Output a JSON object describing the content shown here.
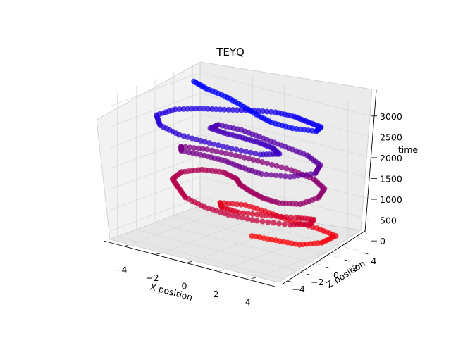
{
  "chart_data": {
    "type": "scatter",
    "projection": "3d",
    "title": "TEYQ",
    "xlabel": "X position",
    "ylabel": "Z position",
    "zlabel": "time",
    "xlim": [
      -5.3,
      5.3
    ],
    "ylim": [
      -4.8,
      4.8
    ],
    "zlim": [
      -200,
      3250
    ],
    "x_ticks": [
      -4,
      -2,
      0,
      2,
      4
    ],
    "y_ticks": [
      -4,
      -2,
      0,
      2,
      4
    ],
    "z_ticks": [
      0,
      500,
      1000,
      1500,
      2000,
      2500,
      3000
    ],
    "x_tick_labels": [
      "−4",
      "−2",
      "0",
      "2",
      "4"
    ],
    "y_tick_labels": [
      "−4",
      "−2",
      "0",
      "2",
      "4"
    ],
    "z_tick_labels": [
      "0",
      "500",
      "1000",
      "1500",
      "2000",
      "2500",
      "3000"
    ],
    "grid": true,
    "color_encoding": "time, red (0) to blue (3000)",
    "colors": {
      "start": "#ff0000",
      "end": "#0000ff",
      "pane": "#f2f2f2",
      "grid": "#d9d9d9"
    },
    "series": [
      {
        "points": [
          [
            0.5,
            0.5,
            0
          ],
          [
            2.0,
            0.5,
            40
          ],
          [
            3.5,
            0.5,
            80
          ],
          [
            4.3,
            1.5,
            120
          ],
          [
            4.3,
            3.0,
            160
          ],
          [
            3.0,
            3.2,
            200
          ],
          [
            1.5,
            3.0,
            240
          ],
          [
            0.0,
            3.2,
            280
          ],
          [
            -1.5,
            3.2,
            320
          ],
          [
            -2.5,
            2.2,
            360
          ],
          [
            -1.8,
            1.2,
            400
          ],
          [
            -0.5,
            0.8,
            440
          ],
          [
            1.0,
            1.2,
            480
          ],
          [
            2.5,
            1.8,
            520
          ],
          [
            3.5,
            2.0,
            560
          ],
          [
            4.0,
            0.8,
            600
          ],
          [
            3.5,
            -0.5,
            640
          ],
          [
            2.0,
            -1.5,
            680
          ],
          [
            0.5,
            -2.0,
            720
          ],
          [
            -1.0,
            -2.0,
            760
          ],
          [
            -2.5,
            -1.5,
            800
          ],
          [
            -3.5,
            -0.5,
            840
          ],
          [
            -4.5,
            0.5,
            880
          ],
          [
            -4.7,
            1.8,
            920
          ],
          [
            -4.0,
            2.8,
            960
          ],
          [
            -2.8,
            3.0,
            1000
          ],
          [
            -1.5,
            2.2,
            1040
          ],
          [
            -0.5,
            1.0,
            1080
          ],
          [
            0.8,
            0.0,
            1120
          ],
          [
            2.0,
            -0.8,
            1160
          ],
          [
            3.2,
            -1.2,
            1200
          ],
          [
            4.3,
            -0.8,
            1240
          ],
          [
            4.5,
            0.8,
            1280
          ],
          [
            4.0,
            2.3,
            1320
          ],
          [
            2.8,
            3.2,
            1360
          ],
          [
            1.2,
            3.5,
            1400
          ],
          [
            -0.5,
            3.3,
            1440
          ],
          [
            -2.0,
            3.0,
            1480
          ],
          [
            -3.5,
            2.5,
            1520
          ],
          [
            -4.6,
            1.6,
            1560
          ],
          [
            -4.0,
            0.6,
            1600
          ],
          [
            -2.5,
            0.5,
            1640
          ],
          [
            -1.0,
            0.2,
            1680
          ],
          [
            0.5,
            -0.5,
            1720
          ],
          [
            2.0,
            -1.0,
            1760
          ],
          [
            3.5,
            -0.5,
            1800
          ],
          [
            4.3,
            0.8,
            1840
          ],
          [
            3.8,
            2.2,
            1880
          ],
          [
            2.5,
            3.0,
            1920
          ],
          [
            1.0,
            3.2,
            1960
          ],
          [
            -0.5,
            3.4,
            2000
          ],
          [
            -2.0,
            3.6,
            2040
          ],
          [
            -3.2,
            3.2,
            2080
          ],
          [
            -3.0,
            2.0,
            2120
          ],
          [
            -1.8,
            1.5,
            2160
          ],
          [
            -0.5,
            1.2,
            2200
          ],
          [
            0.8,
            0.8,
            2240
          ],
          [
            2.0,
            0.2,
            2280
          ],
          [
            3.0,
            -0.8,
            2320
          ],
          [
            2.5,
            -2.0,
            2360
          ],
          [
            1.0,
            -2.5,
            2400
          ],
          [
            -0.5,
            -2.8,
            2440
          ],
          [
            -2.0,
            -3.0,
            2480
          ],
          [
            -3.5,
            -2.5,
            2520
          ],
          [
            -4.5,
            -1.2,
            2560
          ],
          [
            -4.2,
            0.3,
            2600
          ],
          [
            -3.2,
            1.2,
            2640
          ],
          [
            -2.0,
            1.8,
            2680
          ],
          [
            -0.8,
            2.5,
            2720
          ],
          [
            0.5,
            3.0,
            2760
          ],
          [
            1.8,
            2.8,
            2800
          ],
          [
            3.0,
            2.2,
            2840
          ],
          [
            4.2,
            1.6,
            2880
          ],
          [
            4.6,
            0.4,
            2920
          ],
          [
            3.6,
            -0.4,
            2960
          ],
          [
            2.4,
            -0.6,
            3000
          ],
          [
            1.2,
            -0.2,
            3040
          ],
          [
            -0.2,
            0.5,
            3080
          ],
          [
            -1.5,
            1.0,
            3120
          ],
          [
            -2.8,
            1.2,
            3160
          ],
          [
            -3.8,
            1.6,
            3200
          ]
        ]
      }
    ]
  }
}
